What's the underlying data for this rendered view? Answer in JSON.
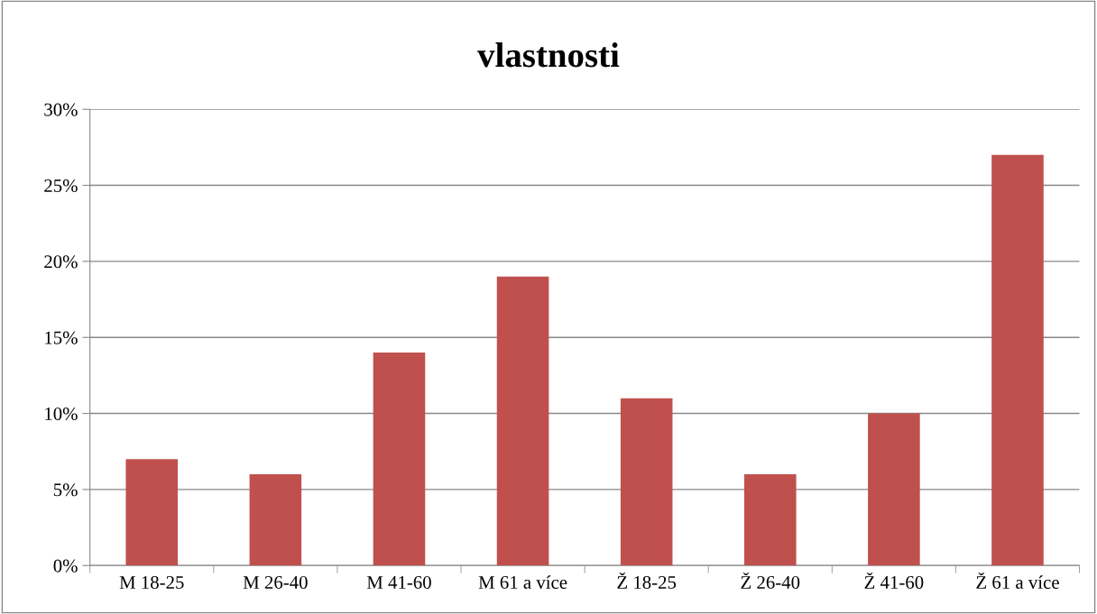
{
  "chart_data": {
    "type": "bar",
    "title": "vlastnosti",
    "categories": [
      "M 18-25",
      "M 26-40",
      "M 41-60",
      "M 61 a více",
      "Ž 18-25",
      "Ž 26-40",
      "Ž 41-60",
      "Ž 61 a více"
    ],
    "values": [
      7,
      6,
      14,
      19,
      11,
      6,
      10,
      27
    ],
    "color": "#c0504d",
    "ylim": [
      0,
      30
    ],
    "yticks": [
      {
        "value": 0,
        "label": "0%"
      },
      {
        "value": 5,
        "label": "5%"
      },
      {
        "value": 10,
        "label": "10%"
      },
      {
        "value": 15,
        "label": "15%"
      },
      {
        "value": 20,
        "label": "20%"
      },
      {
        "value": 25,
        "label": "25%"
      },
      {
        "value": 30,
        "label": "30%"
      }
    ],
    "grid": "y",
    "legend": false
  }
}
